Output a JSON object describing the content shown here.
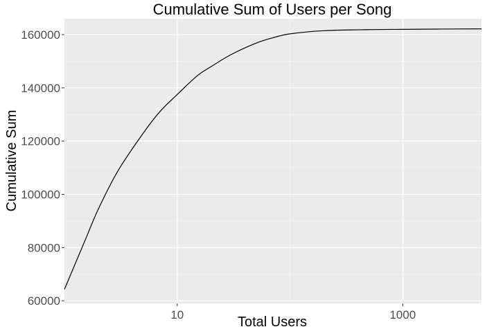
{
  "chart_data": {
    "type": "line",
    "title": "Cumulative Sum of Users per Song",
    "xlabel": "Total Users",
    "ylabel": "Cumulative Sum",
    "x_scale": "log10",
    "xlim": [
      1,
      5000
    ],
    "ylim": [
      59000,
      166000
    ],
    "x_ticks": [
      10,
      1000
    ],
    "x_tick_labels": [
      "10",
      "1000"
    ],
    "y_ticks": [
      60000,
      80000,
      100000,
      120000,
      140000,
      160000
    ],
    "y_tick_labels": [
      "60000",
      "80000",
      "100000",
      "120000",
      "140000",
      "160000"
    ],
    "grid": true,
    "legend": "none",
    "series": [
      {
        "color": "#000000",
        "x": [
          1,
          1.5,
          2,
          3,
          5,
          7,
          10,
          15,
          20,
          30,
          50,
          70,
          100,
          200,
          500,
          1000,
          2000,
          5000
        ],
        "y": [
          64300,
          82000,
          94500,
          109000,
          123000,
          131000,
          137500,
          144500,
          148000,
          152500,
          156800,
          158800,
          160300,
          161500,
          161900,
          162000,
          162100,
          162200
        ]
      }
    ]
  }
}
